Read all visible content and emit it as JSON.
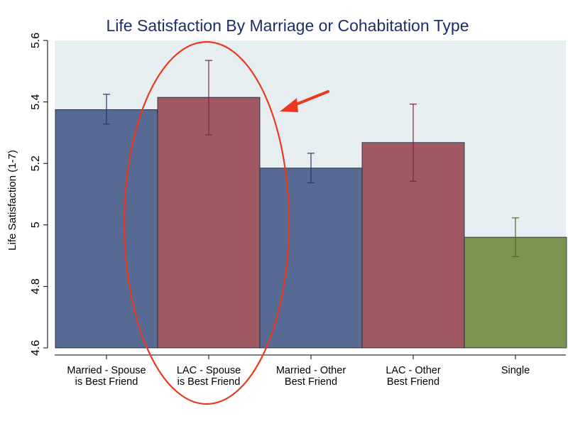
{
  "chart_data": {
    "type": "bar",
    "title": "Life Satisfaction By Marriage or Cohabitation Type",
    "xlabel": "",
    "ylabel": "Life Satisfaction (1-7)",
    "ylim": [
      4.6,
      5.6
    ],
    "yticks": [
      "4.6",
      "4.8",
      "5",
      "5.2",
      "5.4",
      "5.6"
    ],
    "grid": false,
    "categories": [
      [
        "Married - Spouse",
        "is Best Friend"
      ],
      [
        "LAC - Spouse",
        "is Best Friend"
      ],
      [
        "Married - Other",
        "Best Friend"
      ],
      [
        "LAC - Other",
        "Best Friend"
      ],
      [
        "Single"
      ]
    ],
    "values": [
      5.375,
      5.415,
      5.185,
      5.268,
      4.96
    ],
    "error_low": [
      5.328,
      5.293,
      5.137,
      5.142,
      4.897
    ],
    "error_high": [
      5.425,
      5.535,
      5.233,
      5.393,
      5.023
    ],
    "colors": [
      "#566a93",
      "#a05a63",
      "#566a93",
      "#a05a63",
      "#7a9450"
    ],
    "plot_background": "#e6eef2",
    "annotation": {
      "highlight_category": 1,
      "circle_color": "#ea3a1e",
      "arrow_color": "#ea3a1e"
    }
  }
}
